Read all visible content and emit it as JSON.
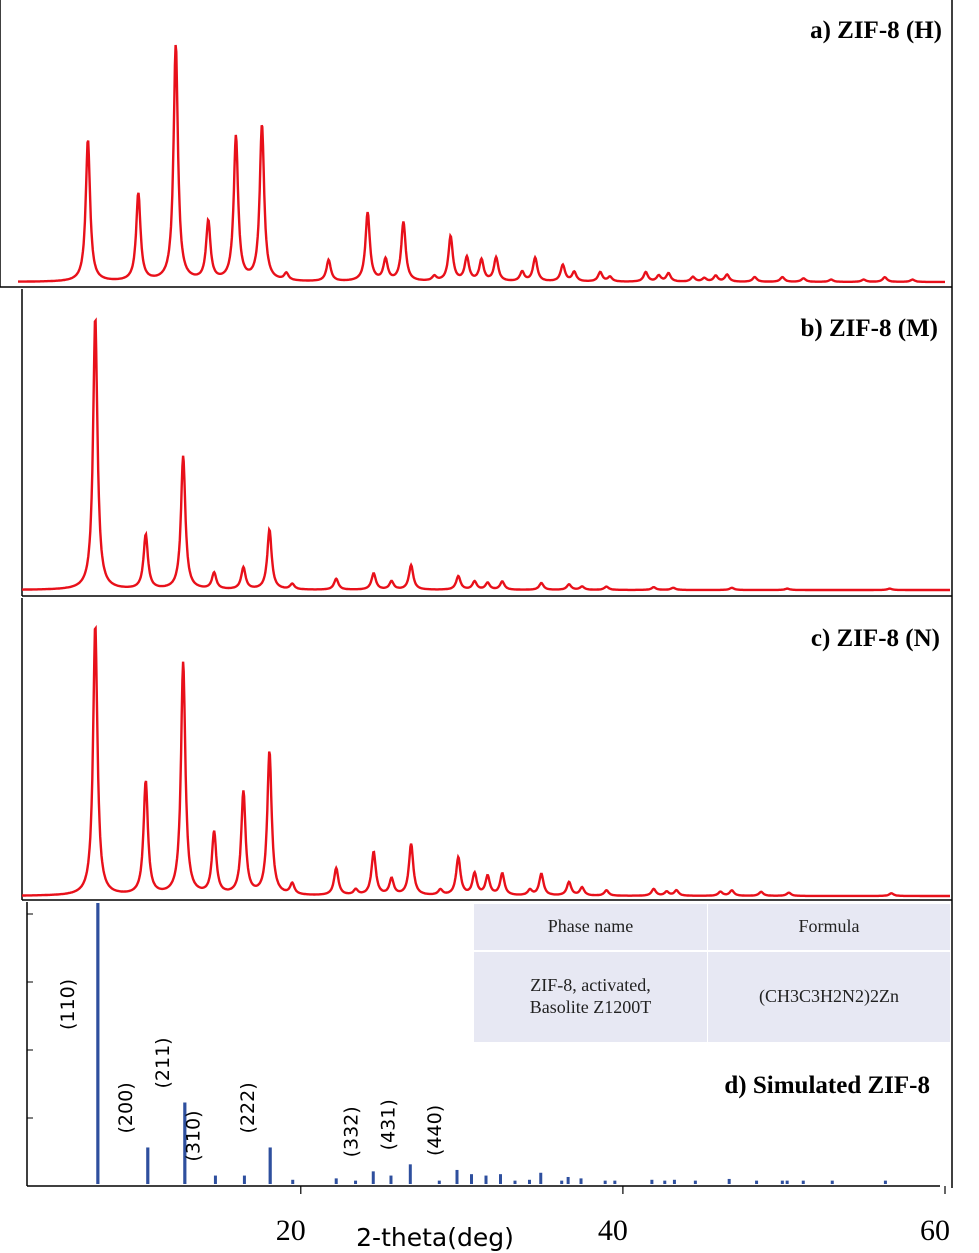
{
  "chart_data": [
    {
      "type": "line",
      "title": "a) ZIF-8 (H)",
      "xlim": [
        3,
        60
      ],
      "ylim": [
        0,
        1
      ],
      "peaks": [
        [
          7.3,
          0.6
        ],
        [
          10.4,
          0.37
        ],
        [
          12.7,
          1.0
        ],
        [
          14.7,
          0.25
        ],
        [
          16.4,
          0.61
        ],
        [
          18.0,
          0.66
        ],
        [
          19.5,
          0.03
        ],
        [
          22.1,
          0.09
        ],
        [
          24.5,
          0.29
        ],
        [
          25.6,
          0.09
        ],
        [
          26.7,
          0.25
        ],
        [
          28.6,
          0.02
        ],
        [
          29.6,
          0.19
        ],
        [
          30.6,
          0.1
        ],
        [
          31.5,
          0.09
        ],
        [
          32.4,
          0.1
        ],
        [
          34.0,
          0.04
        ],
        [
          34.8,
          0.1
        ],
        [
          36.5,
          0.07
        ],
        [
          37.2,
          0.04
        ],
        [
          38.8,
          0.04
        ],
        [
          39.4,
          0.02
        ],
        [
          41.6,
          0.04
        ],
        [
          42.4,
          0.025
        ],
        [
          43.0,
          0.035
        ],
        [
          44.5,
          0.02
        ],
        [
          45.2,
          0.015
        ],
        [
          45.9,
          0.025
        ],
        [
          46.6,
          0.03
        ],
        [
          48.3,
          0.02
        ],
        [
          50.0,
          0.02
        ],
        [
          51.3,
          0.015
        ],
        [
          53.0,
          0.01
        ],
        [
          55.0,
          0.01
        ],
        [
          56.3,
          0.02
        ],
        [
          58.0,
          0.01
        ]
      ]
    },
    {
      "type": "line",
      "title": "b) ZIF-8 (M)",
      "xlim": [
        3,
        60
      ],
      "ylim": [
        0,
        1
      ],
      "peaks": [
        [
          7.5,
          1.0
        ],
        [
          10.6,
          0.2
        ],
        [
          12.9,
          0.49
        ],
        [
          14.8,
          0.06
        ],
        [
          16.6,
          0.08
        ],
        [
          18.2,
          0.22
        ],
        [
          19.6,
          0.02
        ],
        [
          22.3,
          0.04
        ],
        [
          24.6,
          0.06
        ],
        [
          25.7,
          0.03
        ],
        [
          26.9,
          0.09
        ],
        [
          29.8,
          0.05
        ],
        [
          30.8,
          0.03
        ],
        [
          31.6,
          0.025
        ],
        [
          32.5,
          0.03
        ],
        [
          34.9,
          0.025
        ],
        [
          36.6,
          0.02
        ],
        [
          37.4,
          0.012
        ],
        [
          38.9,
          0.012
        ],
        [
          41.8,
          0.01
        ],
        [
          43.0,
          0.008
        ],
        [
          46.6,
          0.008
        ],
        [
          50.0,
          0.005
        ],
        [
          56.3,
          0.005
        ]
      ]
    },
    {
      "type": "line",
      "title": "c) ZIF-8 (N)",
      "xlim": [
        3,
        60
      ],
      "ylim": [
        0,
        1
      ],
      "peaks": [
        [
          7.5,
          1.0
        ],
        [
          10.6,
          0.42
        ],
        [
          12.9,
          0.86
        ],
        [
          14.8,
          0.23
        ],
        [
          16.6,
          0.38
        ],
        [
          18.2,
          0.53
        ],
        [
          19.6,
          0.04
        ],
        [
          22.3,
          0.1
        ],
        [
          23.5,
          0.02
        ],
        [
          24.6,
          0.16
        ],
        [
          25.7,
          0.06
        ],
        [
          26.9,
          0.19
        ],
        [
          28.7,
          0.02
        ],
        [
          29.8,
          0.14
        ],
        [
          30.8,
          0.08
        ],
        [
          31.6,
          0.07
        ],
        [
          32.5,
          0.08
        ],
        [
          34.2,
          0.02
        ],
        [
          34.9,
          0.08
        ],
        [
          36.6,
          0.05
        ],
        [
          37.4,
          0.03
        ],
        [
          38.9,
          0.02
        ],
        [
          41.8,
          0.025
        ],
        [
          42.6,
          0.015
        ],
        [
          43.2,
          0.02
        ],
        [
          45.9,
          0.015
        ],
        [
          46.6,
          0.02
        ],
        [
          48.4,
          0.015
        ],
        [
          50.1,
          0.012
        ],
        [
          56.4,
          0.01
        ]
      ]
    },
    {
      "type": "bar",
      "title": "d) Simulated ZIF-8",
      "xlabel": "2-theta(deg)",
      "xlim": [
        3,
        60
      ],
      "ylim": [
        0,
        1
      ],
      "x_ticks": [
        20,
        40,
        60
      ],
      "sticks": [
        [
          7.4,
          1.0
        ],
        [
          10.5,
          0.13
        ],
        [
          12.8,
          0.29
        ],
        [
          14.7,
          0.03
        ],
        [
          16.5,
          0.03
        ],
        [
          18.1,
          0.13
        ],
        [
          19.5,
          0.015
        ],
        [
          22.2,
          0.02
        ],
        [
          23.4,
          0.01
        ],
        [
          24.5,
          0.045
        ],
        [
          25.6,
          0.03
        ],
        [
          26.8,
          0.07
        ],
        [
          28.6,
          0.01
        ],
        [
          29.7,
          0.05
        ],
        [
          30.6,
          0.035
        ],
        [
          31.5,
          0.03
        ],
        [
          32.4,
          0.035
        ],
        [
          33.3,
          0.01
        ],
        [
          34.2,
          0.015
        ],
        [
          34.9,
          0.04
        ],
        [
          36.2,
          0.01
        ],
        [
          36.6,
          0.025
        ],
        [
          37.4,
          0.02
        ],
        [
          38.9,
          0.012
        ],
        [
          39.5,
          0.01
        ],
        [
          41.8,
          0.015
        ],
        [
          42.6,
          0.01
        ],
        [
          43.2,
          0.015
        ],
        [
          44.5,
          0.01
        ],
        [
          46.6,
          0.018
        ],
        [
          48.3,
          0.012
        ],
        [
          49.9,
          0.01
        ],
        [
          50.2,
          0.012
        ],
        [
          51.2,
          0.008
        ],
        [
          53.0,
          0.008
        ],
        [
          56.3,
          0.01
        ]
      ],
      "hkl_labels": [
        {
          "text": "(110)",
          "x": 7.4
        },
        {
          "text": "(200)",
          "x": 10.5
        },
        {
          "text": "(211)",
          "x": 12.8
        },
        {
          "text": "(310)",
          "x": 14.7
        },
        {
          "text": "(222)",
          "x": 18.1
        },
        {
          "text": "(332)",
          "x": 24.5
        },
        {
          "text": "(431)",
          "x": 26.8
        },
        {
          "text": "(440)",
          "x": 29.7
        }
      ]
    }
  ],
  "colors": {
    "measured": "#e8101a",
    "simulated": "#2e4f9e",
    "table_bg": "#e7e8f3"
  },
  "table": {
    "header_phase": "Phase name",
    "header_formula": "Formula",
    "phase_line1": "ZIF-8, activated,",
    "phase_line2": "Basolite Z1200T",
    "formula": "(CH3C3H2N2)2Zn"
  }
}
